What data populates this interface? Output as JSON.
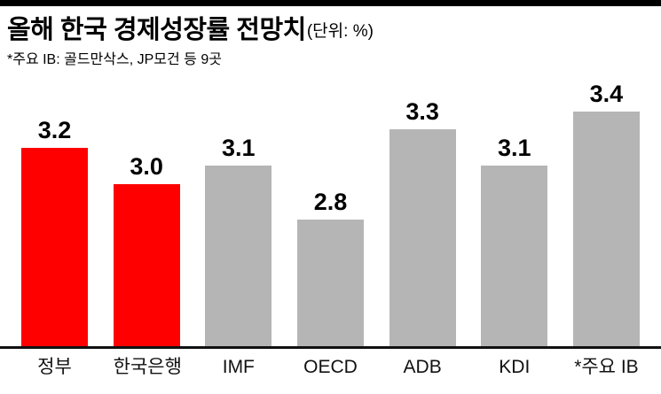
{
  "header": {
    "title": "올해 한국 경제성장률 전망치",
    "unit_label": "(단위: %)",
    "subtitle": "*주요 IB: 골드만삭스, JP모건 등 9곳"
  },
  "chart_data": {
    "type": "bar",
    "title": "올해 한국 경제성장률 전망치",
    "unit": "%",
    "categories": [
      "정부",
      "한국은행",
      "IMF",
      "OECD",
      "ADB",
      "KDI",
      "*주요 IB"
    ],
    "values": [
      3.2,
      3.0,
      3.1,
      2.8,
      3.3,
      3.1,
      3.4
    ],
    "value_labels": [
      "3.2",
      "3.0",
      "3.1",
      "2.8",
      "3.3",
      "3.1",
      "3.4"
    ],
    "colors": [
      "#ff0000",
      "#ff0000",
      "#b5b5b5",
      "#b5b5b5",
      "#b5b5b5",
      "#b5b5b5",
      "#b5b5b5"
    ],
    "highlight_color": "#ff0000",
    "default_bar_color": "#b5b5b5",
    "xlabel": "",
    "ylabel": "",
    "ylim": [
      2.1,
      3.4
    ],
    "grid": false,
    "legend": false,
    "annotation": "*주요 IB: 골드만삭스, JP모건 등 9곳"
  }
}
